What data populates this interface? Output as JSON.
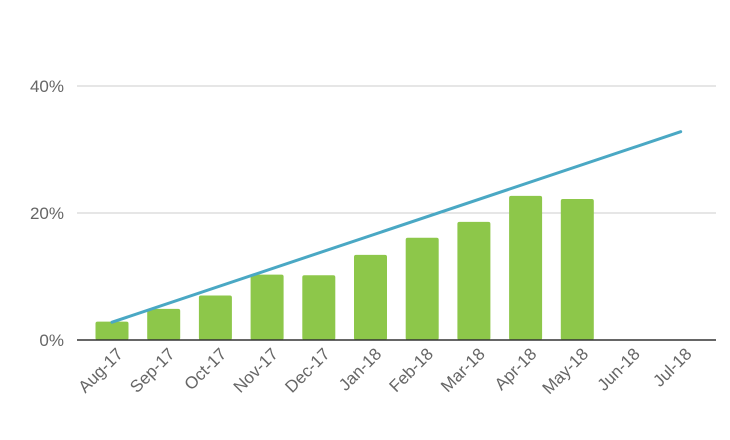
{
  "chart_data": {
    "type": "bar",
    "categories": [
      "Aug-17",
      "Sep-17",
      "Oct-17",
      "Nov-17",
      "Dec-17",
      "Jan-18",
      "Feb-18",
      "Mar-18",
      "Apr-18",
      "May-18",
      "Jun-18",
      "Jul-18"
    ],
    "series": [
      {
        "kind": "bar",
        "values": [
          2.9,
          4.9,
          7.0,
          10.3,
          10.2,
          13.4,
          16.1,
          18.6,
          22.7,
          22.2,
          null,
          null
        ],
        "color": "#8dc74a"
      },
      {
        "kind": "line",
        "start": 2.8,
        "end": 32.8,
        "color": "#4aa8c4"
      }
    ],
    "y_ticks": [
      0,
      20,
      40
    ],
    "y_tick_labels": [
      "0%",
      "20%",
      "40%"
    ],
    "ylim": [
      0,
      40
    ],
    "grid": true,
    "legend": "none",
    "gridline_color": "#cccccc",
    "baseline_color": "#333333"
  }
}
